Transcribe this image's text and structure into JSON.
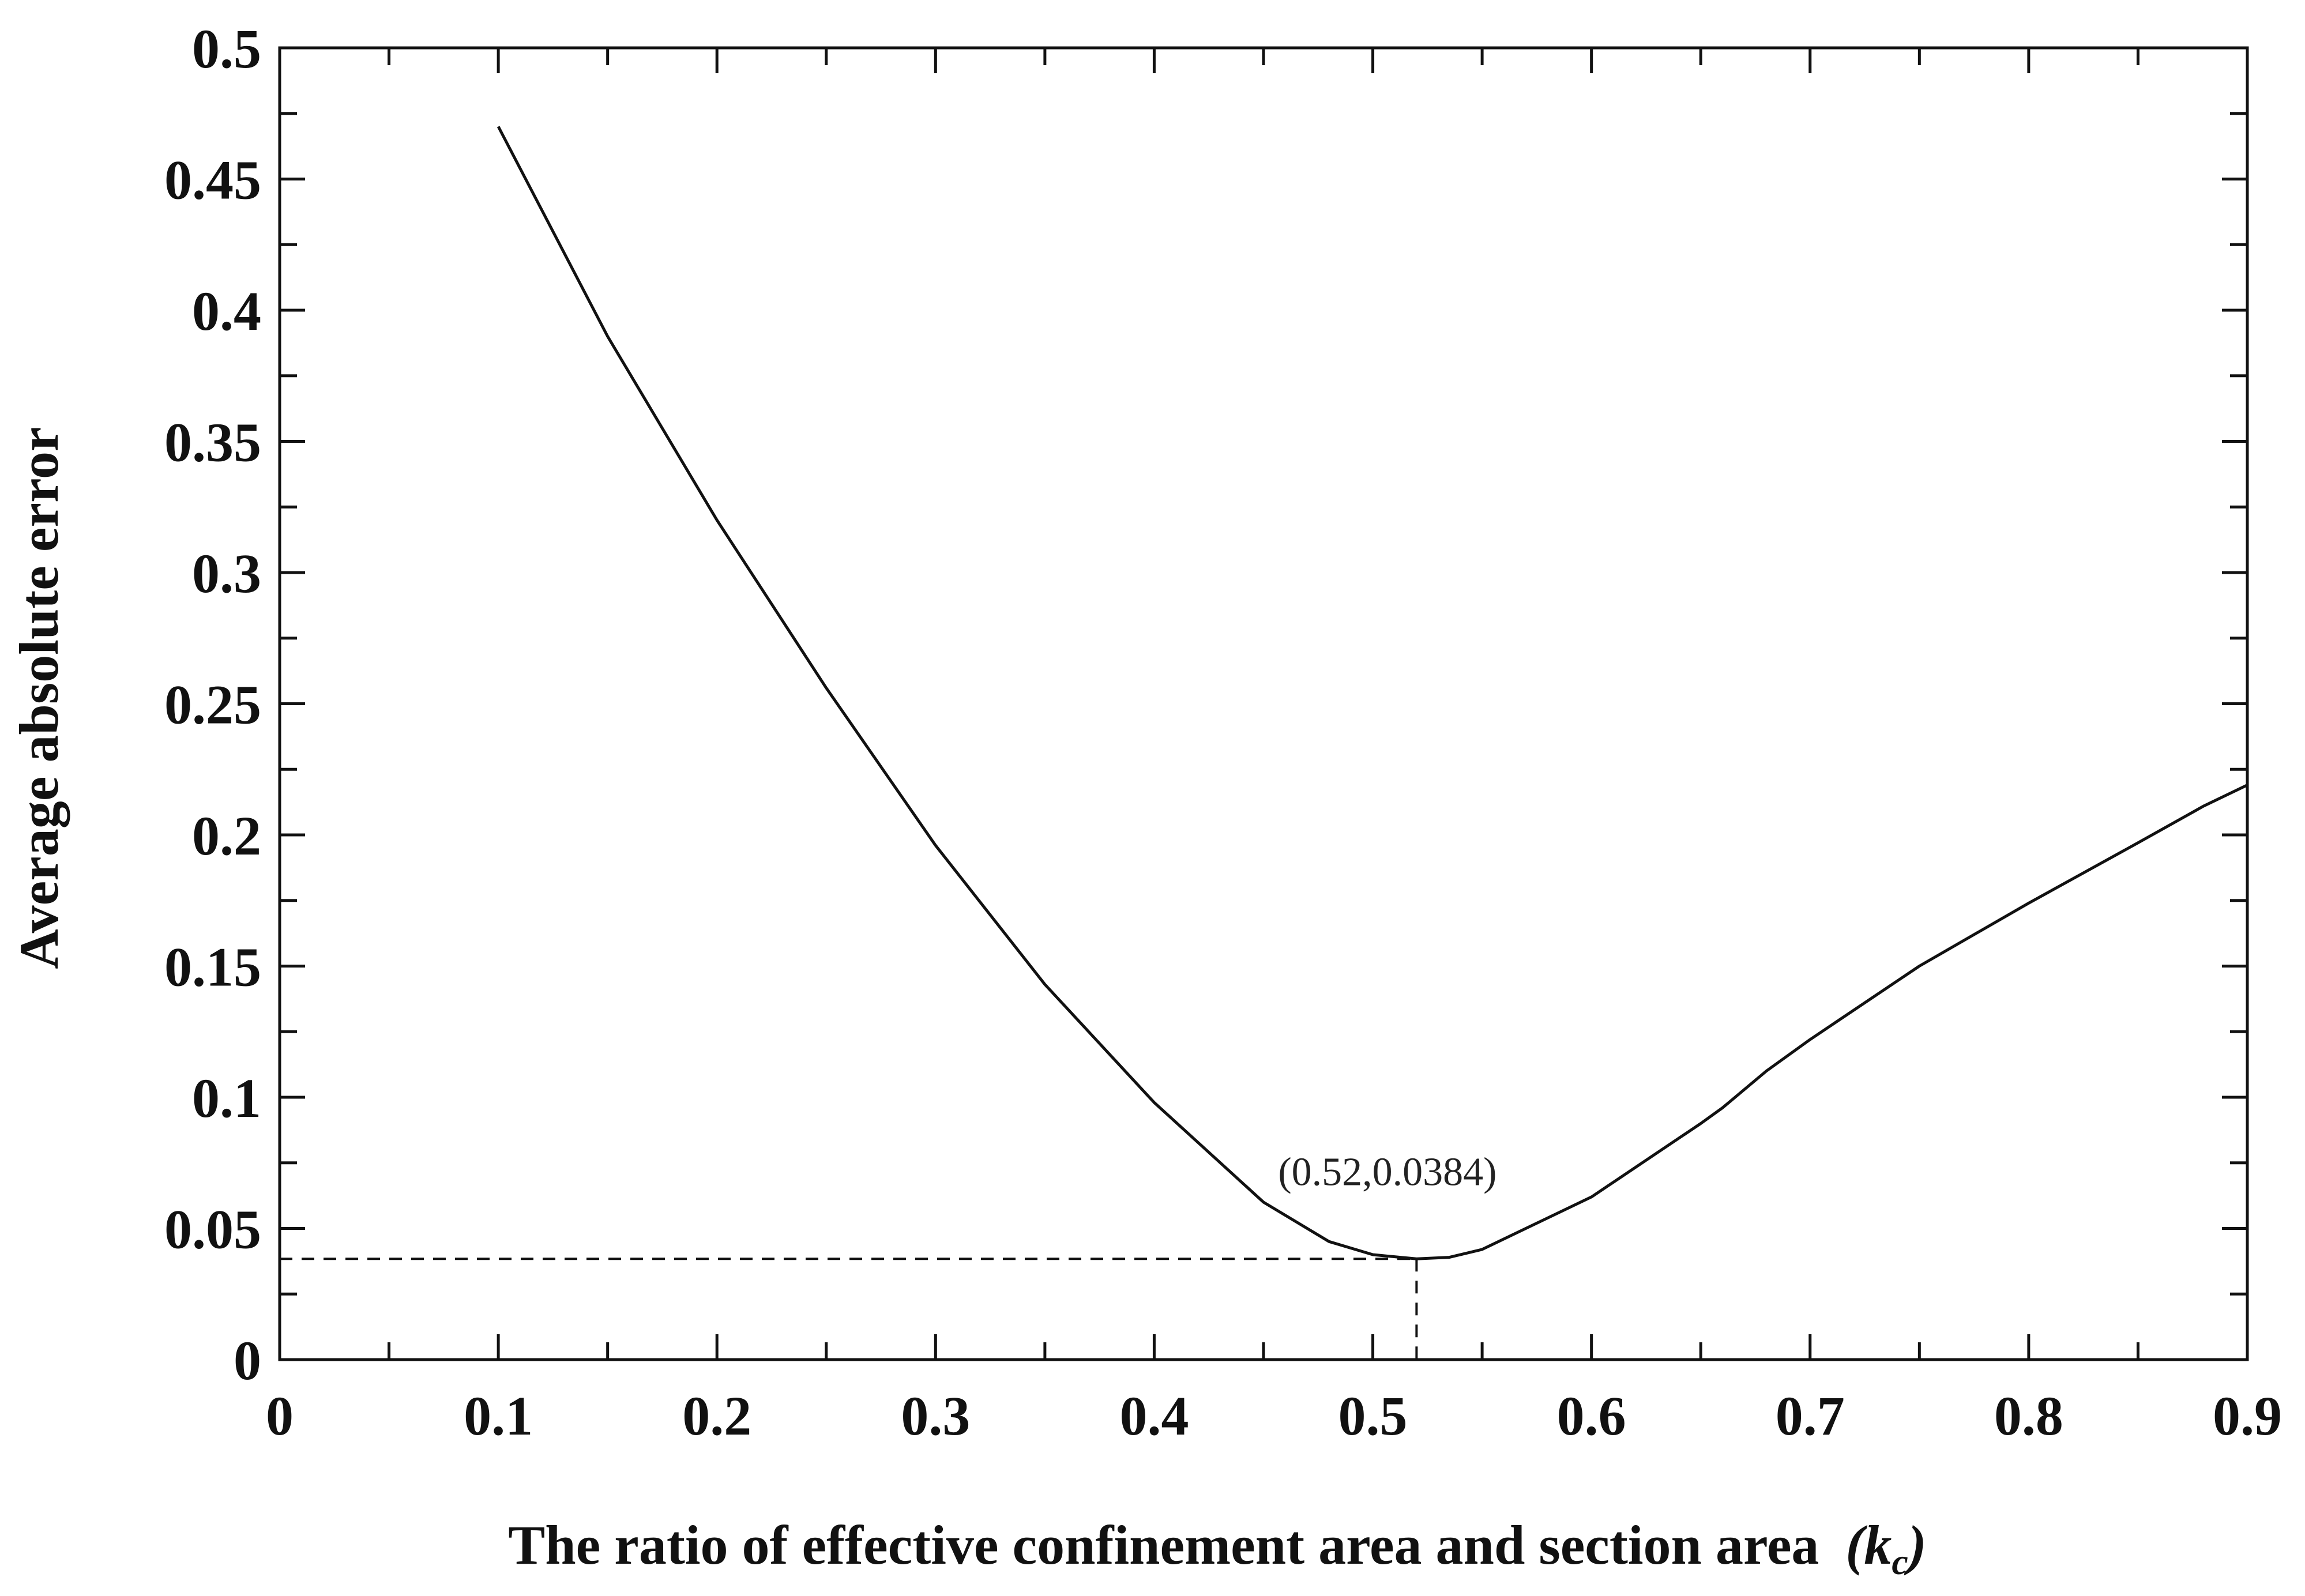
{
  "chart_data": {
    "type": "line",
    "title": "",
    "xlabel": "The ratio of effective confinement area and section area",
    "xlabel_symbol": "(k",
    "xlabel_subscript": "c",
    "xlabel_close": ")",
    "ylabel": "Average absolute error",
    "xlim": [
      0,
      0.9
    ],
    "ylim": [
      0,
      0.5
    ],
    "x_ticks": [
      0,
      0.1,
      0.2,
      0.3,
      0.4,
      0.5,
      0.6,
      0.7,
      0.8,
      0.9
    ],
    "x_tick_labels": [
      "0",
      "0.1",
      "0.2",
      "0.3",
      "0.4",
      "0.5",
      "0.6",
      "0.7",
      "0.8",
      "0.9"
    ],
    "y_ticks": [
      0,
      0.05,
      0.1,
      0.15,
      0.2,
      0.25,
      0.3,
      0.35,
      0.4,
      0.45,
      0.5
    ],
    "y_tick_labels": [
      "0",
      "0.05",
      "0.1",
      "0.15",
      "0.2",
      "0.25",
      "0.3",
      "0.35",
      "0.4",
      "0.45",
      "0.5"
    ],
    "grid": false,
    "series": [
      {
        "name": "Average absolute error",
        "x": [
          0.1,
          0.15,
          0.2,
          0.25,
          0.3,
          0.35,
          0.4,
          0.45,
          0.48,
          0.5,
          0.52,
          0.535,
          0.55,
          0.6,
          0.65,
          0.66,
          0.68,
          0.7,
          0.75,
          0.8,
          0.85,
          0.88,
          0.9
        ],
        "y": [
          0.47,
          0.39,
          0.32,
          0.256,
          0.196,
          0.143,
          0.098,
          0.06,
          0.045,
          0.04,
          0.0384,
          0.039,
          0.042,
          0.062,
          0.09,
          0.096,
          0.11,
          0.122,
          0.15,
          0.174,
          0.197,
          0.211,
          0.219
        ]
      }
    ],
    "annotations": [
      {
        "text": "(0.52,0.0384)",
        "x": 0.52,
        "y": 0.0384
      }
    ]
  }
}
